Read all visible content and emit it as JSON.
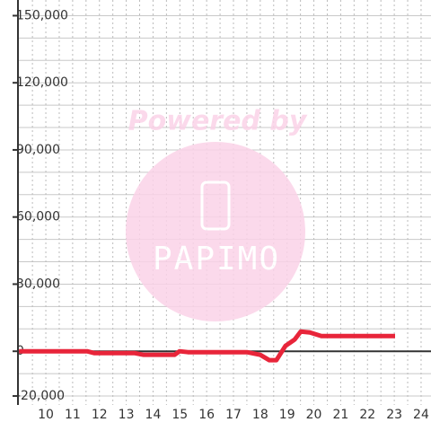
{
  "chart_data": {
    "type": "line",
    "x": [
      9,
      11.54,
      11.8,
      13.3,
      13.65,
      14.8,
      14.99,
      15.3,
      17.5,
      18.0,
      18.34,
      18.6,
      18.94,
      19.28,
      19.51,
      19.85,
      20.28,
      23.03
    ],
    "series": [
      {
        "color": "#e8253a",
        "values": [
          0,
          0,
          -800,
          -800,
          -1600,
          -1600,
          0,
          -400,
          -400,
          -1600,
          -4000,
          -4000,
          2400,
          5200,
          8800,
          8400,
          6800,
          6800
        ]
      }
    ],
    "xlim": [
      8.96,
      24.37
    ],
    "xticks": [
      10,
      11,
      12,
      13,
      14,
      15,
      16,
      17,
      18,
      19,
      20,
      21,
      22,
      23,
      24
    ],
    "xgrid": [
      9.5,
      10,
      10.5,
      11,
      11.5,
      12,
      12.5,
      13,
      13.5,
      14,
      14.5,
      15,
      15.5,
      16,
      16.5,
      17,
      17.5,
      18,
      18.5,
      19,
      19.5,
      20,
      20.5,
      21,
      21.5,
      22,
      22.5,
      23,
      23.5,
      24
    ],
    "ylim": [
      -24000,
      157000
    ],
    "yticks": [
      {
        "value": -20000,
        "label": "-20,000"
      },
      {
        "value": 0,
        "label": "0"
      },
      {
        "value": 30000,
        "label": "30,000"
      },
      {
        "value": 60000,
        "label": "60,000"
      },
      {
        "value": 90000,
        "label": "90,000"
      },
      {
        "value": 120000,
        "label": "120,000"
      },
      {
        "value": 150000,
        "label": "150,000"
      }
    ],
    "ygrid": [
      -20000,
      -10000,
      10000,
      20000,
      30000,
      40000,
      50000,
      60000,
      70000,
      80000,
      90000,
      100000,
      110000,
      120000,
      130000,
      140000,
      150000
    ],
    "grid": true
  },
  "watermark": {
    "text": "Powered by",
    "logo": "PAPIMO"
  }
}
